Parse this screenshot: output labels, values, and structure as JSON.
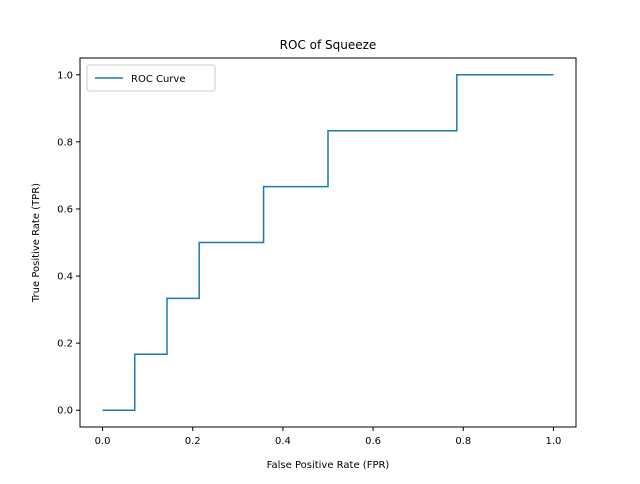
{
  "chart_data": {
    "type": "line",
    "title": "ROC of Squeeze",
    "xlabel": "False Positive Rate (FPR)",
    "ylabel": "True Positive Rate (TPR)",
    "xlim": [
      -0.05,
      1.05
    ],
    "ylim": [
      -0.05,
      1.05
    ],
    "xticks": [
      0.0,
      0.2,
      0.4,
      0.6,
      0.8,
      1.0
    ],
    "yticks": [
      0.0,
      0.2,
      0.4,
      0.6,
      0.8,
      1.0
    ],
    "xtick_labels": [
      "0.0",
      "0.2",
      "0.4",
      "0.6",
      "0.8",
      "1.0"
    ],
    "ytick_labels": [
      "0.0",
      "0.2",
      "0.4",
      "0.6",
      "0.8",
      "1.0"
    ],
    "grid": false,
    "legend_position": "upper-left",
    "series": [
      {
        "name": "ROC Curve",
        "color": "#1f77b4",
        "x": [
          0.0,
          0.0714,
          0.0714,
          0.1429,
          0.1429,
          0.2143,
          0.2143,
          0.3571,
          0.3571,
          0.5,
          0.5,
          0.7857,
          0.7857,
          1.0
        ],
        "y": [
          0.0,
          0.0,
          0.1667,
          0.1667,
          0.3333,
          0.3333,
          0.5,
          0.5,
          0.6667,
          0.6667,
          0.8333,
          0.8333,
          1.0,
          1.0
        ]
      }
    ]
  }
}
